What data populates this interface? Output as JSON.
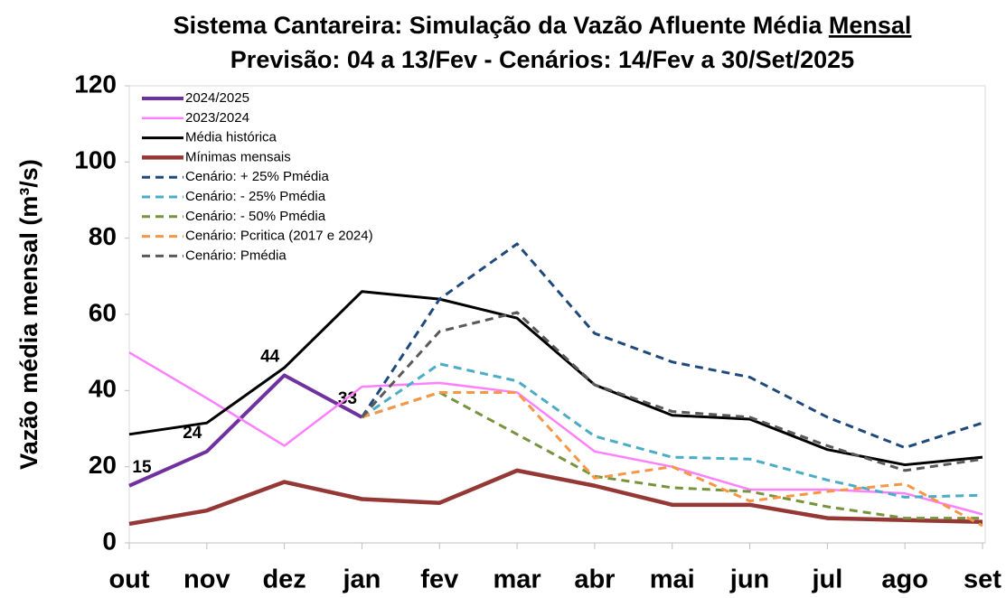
{
  "chart_data": {
    "type": "line",
    "title": [
      "Sistema Cantareira: Simulação da Vazão Afluente Média",
      "Mensal"
    ],
    "subtitle": "Previsão: 04 a 13/Fev - Cenários: 14/Fev a 30/Set/2025",
    "y_label": "Vazão média mensal (m³/s)",
    "categories": [
      "out",
      "nov",
      "dez",
      "jan",
      "fev",
      "mar",
      "abr",
      "mai",
      "jun",
      "jul",
      "ago",
      "set"
    ],
    "ylim": [
      0,
      120
    ],
    "yticks": [
      0,
      20,
      40,
      60,
      80,
      100,
      120
    ],
    "grid": false,
    "legend": "top-left",
    "series": [
      {
        "name": "2024/2025",
        "color": "#7030a0",
        "width": 4,
        "dashed": false,
        "data_labels": true,
        "values": [
          15,
          24,
          44,
          33,
          null,
          null,
          null,
          null,
          null,
          null,
          null,
          null
        ]
      },
      {
        "name": "2023/2024",
        "color": "#ff80ff",
        "width": 2.5,
        "dashed": false,
        "values": [
          50,
          38,
          25.5,
          41,
          42,
          39.5,
          24,
          20,
          14,
          14,
          13,
          7.5
        ]
      },
      {
        "name": "Média histórica",
        "color": "#000000",
        "width": 3,
        "dashed": false,
        "values": [
          28.5,
          31.5,
          46,
          66,
          64,
          59,
          41.5,
          33.5,
          32.5,
          24.5,
          20.5,
          22.5
        ]
      },
      {
        "name": "Mínimas mensais",
        "color": "#953735",
        "width": 4.5,
        "dashed": false,
        "values": [
          5,
          8.5,
          16,
          11.5,
          10.5,
          19,
          15,
          10,
          10,
          6.5,
          6,
          5.5
        ]
      },
      {
        "name": "Cenário: + 25% Pmédia",
        "color": "#1f497d",
        "width": 3,
        "dashed": true,
        "values": [
          null,
          null,
          null,
          33,
          64,
          78.5,
          55,
          47.5,
          43.5,
          33,
          25,
          31.5
        ]
      },
      {
        "name": "Cenário: - 25% Pmédia",
        "color": "#4bacc6",
        "width": 3,
        "dashed": true,
        "values": [
          null,
          null,
          null,
          33,
          47,
          42.5,
          28,
          22.5,
          22,
          16.5,
          12,
          12.5
        ]
      },
      {
        "name": "Cenário: - 50% Pmédia",
        "color": "#77933c",
        "width": 3,
        "dashed": true,
        "values": [
          null,
          null,
          null,
          33,
          39.5,
          28.5,
          17.5,
          14.5,
          13.5,
          9.5,
          6.5,
          6.5
        ]
      },
      {
        "name": "Cenário: Pcritica (2017 e 2024)",
        "color": "#f79646",
        "width": 3,
        "dashed": true,
        "values": [
          null,
          null,
          null,
          33,
          39.5,
          39.5,
          17,
          20,
          11,
          13.5,
          15.5,
          4.5
        ]
      },
      {
        "name": "Cenário: Pmédia",
        "color": "#595959",
        "width": 3,
        "dashed": true,
        "values": [
          null,
          null,
          null,
          33,
          55.5,
          60.5,
          41.5,
          34.5,
          33,
          25.5,
          19,
          22
        ]
      }
    ]
  }
}
